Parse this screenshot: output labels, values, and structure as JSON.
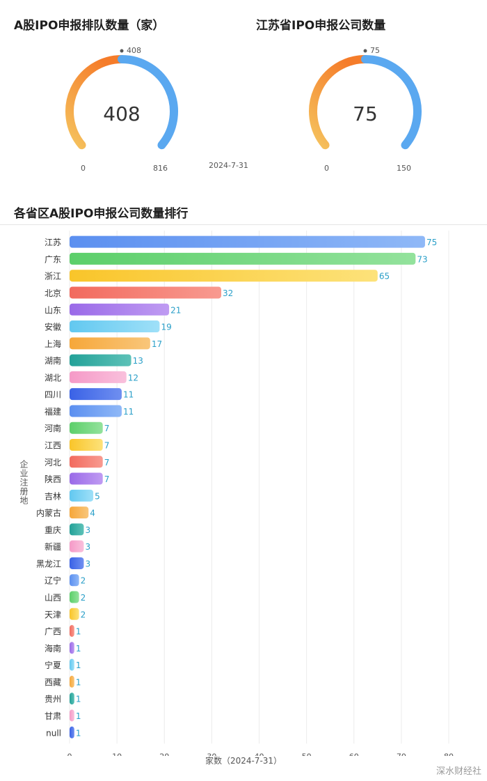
{
  "gauges": [
    {
      "title": "A股IPO申报排队数量（家）",
      "value": 408,
      "value_label": "408",
      "min": 0,
      "max": 816,
      "min_label": "0",
      "max_label": "816",
      "pointer_label": "408"
    },
    {
      "title": "江苏省IPO申报公司数量",
      "value": 75,
      "value_label": "75",
      "min": 0,
      "max": 150,
      "min_label": "0",
      "max_label": "150",
      "pointer_label": "75"
    }
  ],
  "date": "2024-7-31",
  "brand": "深水财经社",
  "colors": {
    "gauge_orange": "#f57c2a",
    "gauge_yellow": "#f5c35e",
    "gauge_blue": "#5aa8f0"
  },
  "chart_data": {
    "type": "bar",
    "orientation": "horizontal",
    "title": "各省区A股IPO申报公司数量排行",
    "ylabel": "企业注册地",
    "xlabel": "家数（2024-7-31）",
    "xlim": [
      0,
      80
    ],
    "xticks": [
      0,
      10,
      20,
      30,
      40,
      50,
      60,
      70,
      80
    ],
    "grid": "vertical",
    "categories": [
      "江苏",
      "广东",
      "浙江",
      "北京",
      "山东",
      "安徽",
      "上海",
      "湖南",
      "湖北",
      "四川",
      "福建",
      "河南",
      "江西",
      "河北",
      "陕西",
      "吉林",
      "内蒙古",
      "重庆",
      "新疆",
      "黑龙江",
      "辽宁",
      "山西",
      "天津",
      "广西",
      "海南",
      "宁夏",
      "西藏",
      "贵州",
      "甘肃",
      "null"
    ],
    "values": [
      75,
      73,
      65,
      32,
      21,
      19,
      17,
      13,
      12,
      11,
      11,
      7,
      7,
      7,
      7,
      5,
      4,
      3,
      3,
      3,
      2,
      2,
      2,
      1,
      1,
      1,
      1,
      1,
      1,
      1
    ],
    "colors": [
      [
        "#5b8ff0",
        "#8fb8f7"
      ],
      [
        "#5ccf6a",
        "#93e29c"
      ],
      [
        "#f9c52a",
        "#fde27a"
      ],
      [
        "#f26a5e",
        "#f89a90"
      ],
      [
        "#9a6ae8",
        "#bf9bf2"
      ],
      [
        "#62c8f0",
        "#9fe0f8"
      ],
      [
        "#f6a73a",
        "#f9c67a"
      ],
      [
        "#23a198",
        "#5dc2b8"
      ],
      [
        "#f59ac7",
        "#f9c0dc"
      ],
      [
        "#3a62e6",
        "#6f8ff0"
      ]
    ],
    "label_color": "#2a9fc8"
  }
}
